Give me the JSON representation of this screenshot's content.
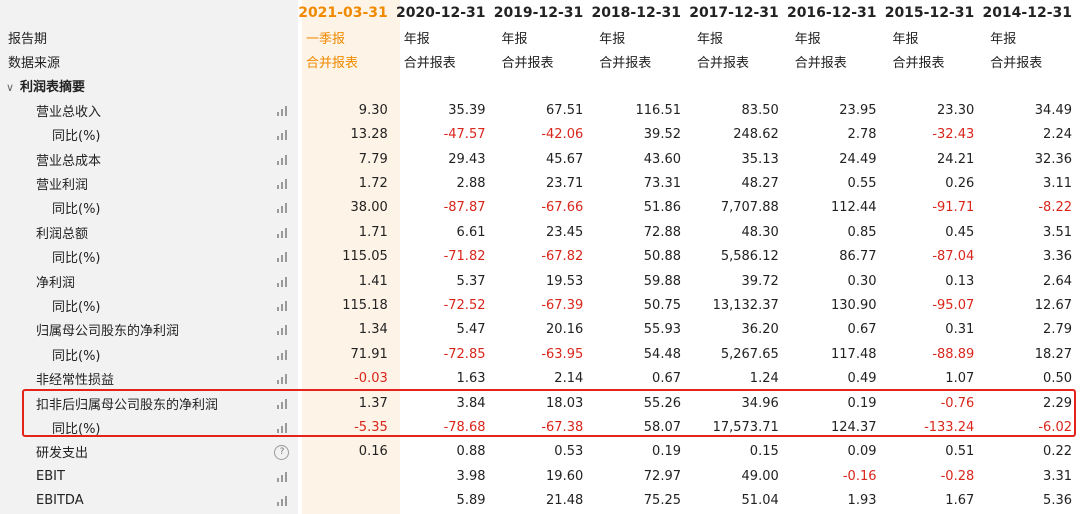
{
  "header": {
    "dates": [
      "2021-03-31",
      "2020-12-31",
      "2019-12-31",
      "2018-12-31",
      "2017-12-31",
      "2016-12-31",
      "2015-12-31",
      "2014-12-31"
    ]
  },
  "meta_rows": [
    {
      "label": "报告期",
      "values": [
        "一季报",
        "年报",
        "年报",
        "年报",
        "年报",
        "年报",
        "年报",
        "年报"
      ]
    },
    {
      "label": "数据来源",
      "values": [
        "合并报表",
        "合并报表",
        "合并报表",
        "合并报表",
        "合并报表",
        "合并报表",
        "合并报表",
        "合并报表"
      ]
    }
  ],
  "section": {
    "label": "利润表摘要",
    "toggle": "∨"
  },
  "rows": [
    {
      "label": "营业总收入",
      "values": [
        "9.30",
        "35.39",
        "67.51",
        "116.51",
        "83.50",
        "23.95",
        "23.30",
        "34.49"
      ]
    },
    {
      "label": "同比(%)",
      "values": [
        "13.28",
        "-47.57",
        "-42.06",
        "39.52",
        "248.62",
        "2.78",
        "-32.43",
        "2.24"
      ]
    },
    {
      "label": "营业总成本",
      "values": [
        "7.79",
        "29.43",
        "45.67",
        "43.60",
        "35.13",
        "24.49",
        "24.21",
        "32.36"
      ]
    },
    {
      "label": "营业利润",
      "values": [
        "1.72",
        "2.88",
        "23.71",
        "73.31",
        "48.27",
        "0.55",
        "0.26",
        "3.11"
      ]
    },
    {
      "label": "同比(%)",
      "values": [
        "38.00",
        "-87.87",
        "-67.66",
        "51.86",
        "7,707.88",
        "112.44",
        "-91.71",
        "-8.22"
      ]
    },
    {
      "label": "利润总额",
      "values": [
        "1.71",
        "6.61",
        "23.45",
        "72.88",
        "48.30",
        "0.85",
        "0.45",
        "3.51"
      ]
    },
    {
      "label": "同比(%)",
      "values": [
        "115.05",
        "-71.82",
        "-67.82",
        "50.88",
        "5,586.12",
        "86.77",
        "-87.04",
        "3.36"
      ]
    },
    {
      "label": "净利润",
      "values": [
        "1.41",
        "5.37",
        "19.53",
        "59.88",
        "39.72",
        "0.30",
        "0.13",
        "2.64"
      ]
    },
    {
      "label": "同比(%)",
      "values": [
        "115.18",
        "-72.52",
        "-67.39",
        "50.75",
        "13,132.37",
        "130.90",
        "-95.07",
        "12.67"
      ]
    },
    {
      "label": "归属母公司股东的净利润",
      "values": [
        "1.34",
        "5.47",
        "20.16",
        "55.93",
        "36.20",
        "0.67",
        "0.31",
        "2.79"
      ]
    },
    {
      "label": "同比(%)",
      "values": [
        "71.91",
        "-72.85",
        "-63.95",
        "54.48",
        "5,267.65",
        "117.48",
        "-88.89",
        "18.27"
      ]
    },
    {
      "label": "非经常性损益",
      "values": [
        "-0.03",
        "1.63",
        "2.14",
        "0.67",
        "1.24",
        "0.49",
        "1.07",
        "0.50"
      ]
    },
    {
      "label": "扣非后归属母公司股东的净利润",
      "values": [
        "1.37",
        "3.84",
        "18.03",
        "55.26",
        "34.96",
        "0.19",
        "-0.76",
        "2.29"
      ]
    },
    {
      "label": "同比(%)",
      "values": [
        "-5.35",
        "-78.68",
        "-67.38",
        "58.07",
        "17,573.71",
        "124.37",
        "-133.24",
        "-6.02"
      ]
    },
    {
      "label": "研发支出",
      "values": [
        "0.16",
        "0.88",
        "0.53",
        "0.19",
        "0.15",
        "0.09",
        "0.51",
        "0.22"
      ]
    },
    {
      "label": "EBIT",
      "values": [
        "",
        "3.98",
        "19.60",
        "72.97",
        "49.00",
        "-0.16",
        "-0.28",
        "3.31"
      ]
    },
    {
      "label": "EBITDA",
      "values": [
        "",
        "5.89",
        "21.48",
        "75.25",
        "51.04",
        "1.93",
        "1.67",
        "5.36"
      ]
    }
  ],
  "help_icon_glyph": "?",
  "colors": {
    "accent": "#f08a00",
    "negative": "#d9261c",
    "highlight_border": "#e4241b"
  }
}
